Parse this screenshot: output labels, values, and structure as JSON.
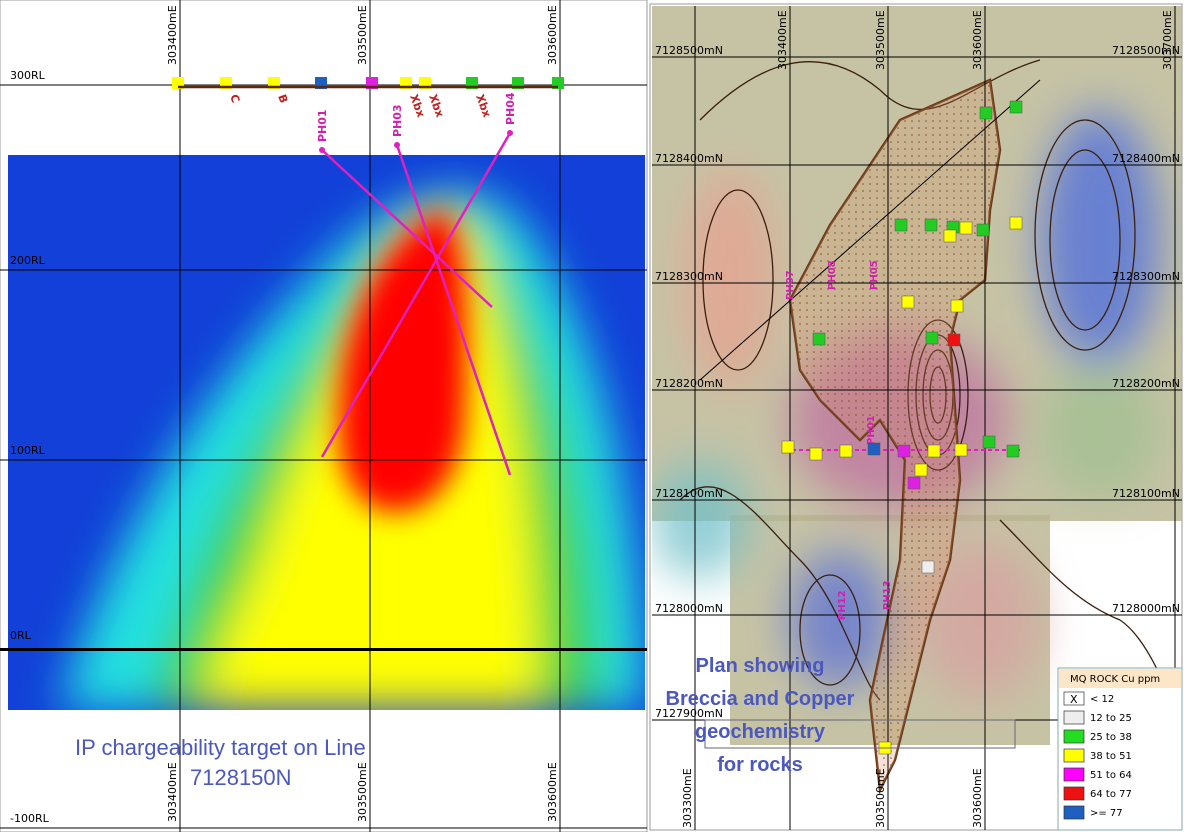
{
  "section": {
    "caption": "IP chargeability target on Line 7128150N",
    "eastings_top": [
      "303400mE",
      "303500mE",
      "303600mE"
    ],
    "eastings_bottom": [
      "303400mE",
      "303500mE",
      "303600mE"
    ],
    "levels": [
      "300RL",
      "200RL",
      "100RL",
      "0RL",
      "-100RL"
    ],
    "samples": [
      {
        "label": null,
        "color": "#ffff00"
      },
      {
        "label": "C",
        "color": "#ffff00"
      },
      {
        "label": "B",
        "color": "#ffff00"
      },
      {
        "label": null,
        "color": "#1f5fbf"
      },
      {
        "label": null,
        "color": "#e020e0"
      },
      {
        "label": "Xbx",
        "color": "#ffff00"
      },
      {
        "label": "Xbx",
        "color": "#ffff00"
      },
      {
        "label": "Xbx",
        "color": "#22cc22"
      },
      {
        "label": null,
        "color": "#22cc22"
      },
      {
        "label": null,
        "color": "#22cc22"
      }
    ],
    "holes": [
      "PH01",
      "PH03",
      "PH04"
    ]
  },
  "plan": {
    "caption": "Plan showing Breccia and Copper geochemistry for rocks",
    "eastings_top": [
      "303400mE",
      "303500mE",
      "303600mE",
      "303700mE"
    ],
    "eastings_bottom": [
      "303300mE",
      "303500mE",
      "303600mE"
    ],
    "northings_left": [
      "7128500mN",
      "7128400mN",
      "7128300mN",
      "7128200mN",
      "7128100mN",
      "7128000mN",
      "7127900mN"
    ],
    "northings_right": [
      "7128500mN",
      "7128400mN",
      "7128300mN",
      "7128200mN",
      "7128100mN",
      "7128000mN"
    ],
    "holes": [
      "PH07",
      "PH08",
      "PH05",
      "PH01",
      "PH12",
      "PH13"
    ],
    "sample_colors": [
      "#22cc22",
      "#22cc22",
      "#22cc22",
      "#22cc22",
      "#22cc22",
      "#ffff00",
      "#ffff00",
      "#22cc22",
      "#ffff00",
      "#ffff00",
      "#ffff00",
      "#22cc22",
      "#22cc22",
      "#ee1111",
      "#ffff00",
      "#ffff00",
      "#ffff00",
      "#1f5fbf",
      "#e020e0",
      "#ffff00",
      "#ffff00",
      "#22cc22",
      "#22cc22",
      "#ffff00",
      "#e020e0",
      "#eeeeee",
      "#ffff00"
    ]
  },
  "legend": {
    "title": "MQ ROCK Cu ppm",
    "items": [
      {
        "symbol": "X",
        "label": "< 12",
        "color": "#ffffff"
      },
      {
        "symbol": null,
        "label": "12 to 25",
        "color": "#eeeeee"
      },
      {
        "symbol": null,
        "label": "25 to 38",
        "color": "#22dd22"
      },
      {
        "symbol": null,
        "label": "38 to 51",
        "color": "#ffff00"
      },
      {
        "symbol": null,
        "label": "51 to 64",
        "color": "#ff00ff"
      },
      {
        "symbol": null,
        "label": "64 to 77",
        "color": "#ee1111"
      },
      {
        "symbol": null,
        "label": ">= 77",
        "color": "#1f5fbf"
      }
    ]
  }
}
